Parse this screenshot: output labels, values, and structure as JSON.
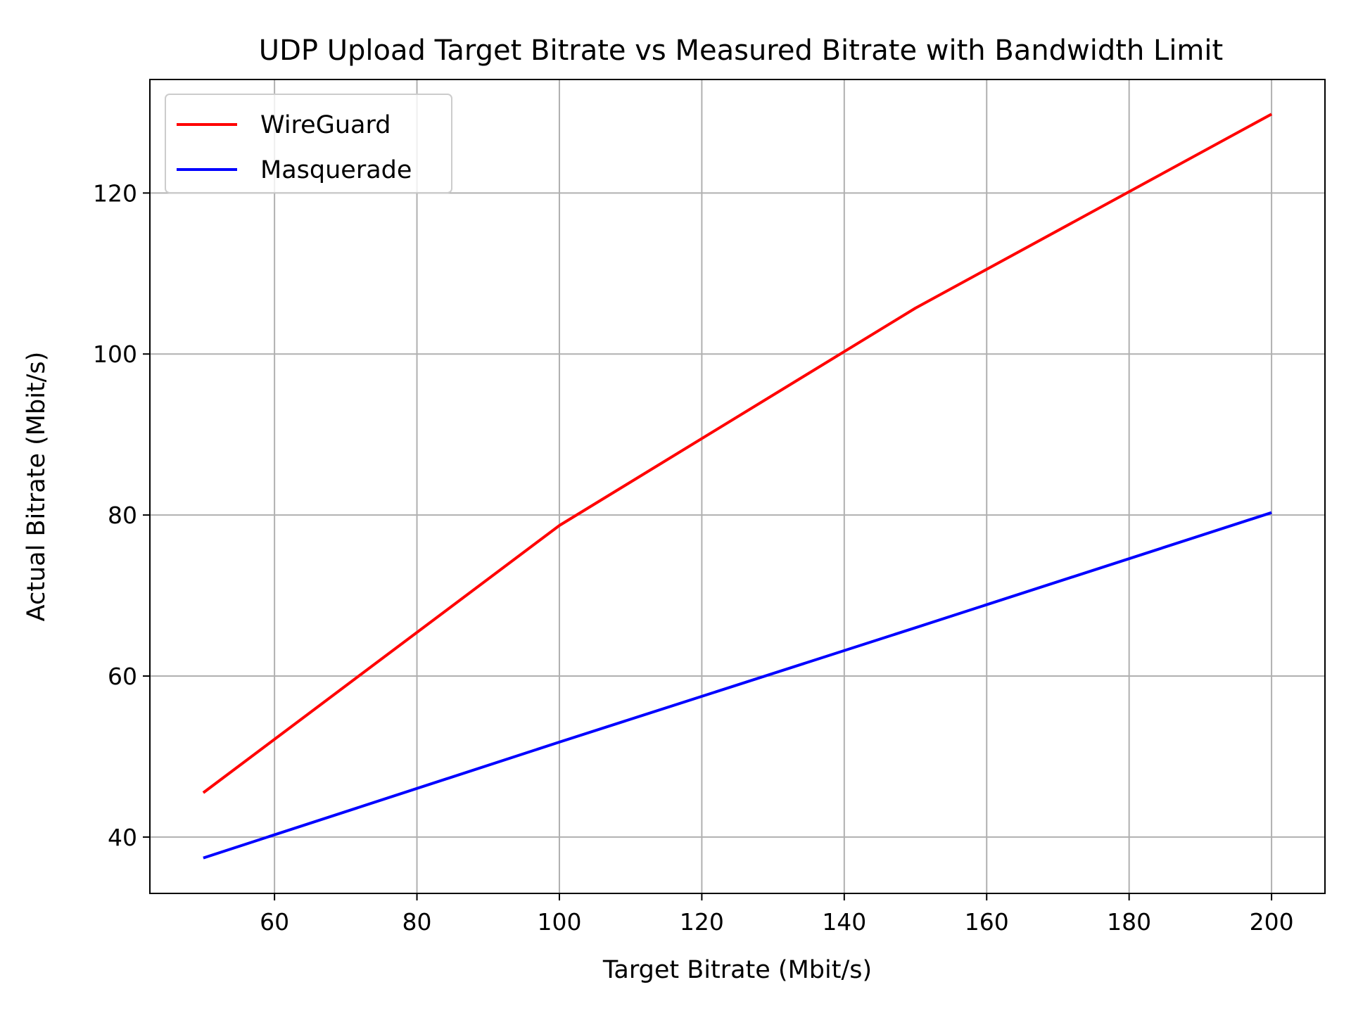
{
  "chart_data": {
    "type": "line",
    "title": "UDP Upload Target Bitrate vs Measured Bitrate with Bandwidth Limit",
    "xlabel": "Target Bitrate (Mbit/s)",
    "ylabel": "Actual Bitrate (Mbit/s)",
    "x": [
      50,
      100,
      150,
      200
    ],
    "series": [
      {
        "name": "WireGuard",
        "color": "#ff0000",
        "values": [
          45.5,
          78.7,
          105.7,
          129.8
        ]
      },
      {
        "name": "Masquerade",
        "color": "#0000ff",
        "values": [
          37.4,
          51.8,
          66.0,
          80.3
        ]
      }
    ],
    "xlim": [
      42.5,
      207.5
    ],
    "ylim": [
      33.0,
      134.1
    ],
    "xticks": [
      60,
      80,
      100,
      120,
      140,
      160,
      180,
      200
    ],
    "yticks": [
      40,
      60,
      80,
      100,
      120
    ],
    "grid": true,
    "legend_position": "top-left"
  }
}
